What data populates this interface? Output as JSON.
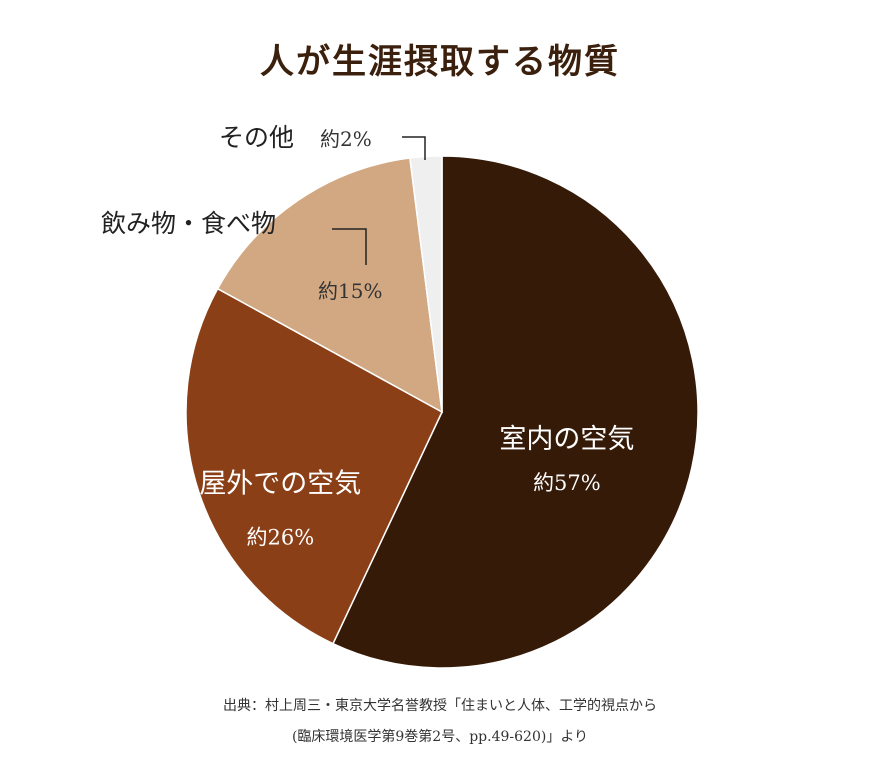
{
  "chart_data": {
    "type": "pie",
    "title": "人が生涯摂取する物質",
    "slices": [
      {
        "label": "室内の空気",
        "value_label": "約57%",
        "value": 57,
        "color": "#351a08",
        "text_color": "#ffffff"
      },
      {
        "label": "屋外での空気",
        "value_label": "約26%",
        "value": 26,
        "color": "#8a3f17",
        "text_color": "#ffffff"
      },
      {
        "label": "飲み物・食べ物",
        "value_label": "約15%",
        "value": 15,
        "color": "#d2a882",
        "text_color": "#333333"
      },
      {
        "label": "その他",
        "value_label": "約2%",
        "value": 2,
        "color": "#efefef",
        "text_color": "#333333"
      }
    ]
  },
  "source": {
    "line1": "出典：村上周三・東京大学名誉教授「住まいと人体、工学的視点から",
    "line2": "(臨床環境医学第9巻第2号、pp.49-620)」より"
  }
}
